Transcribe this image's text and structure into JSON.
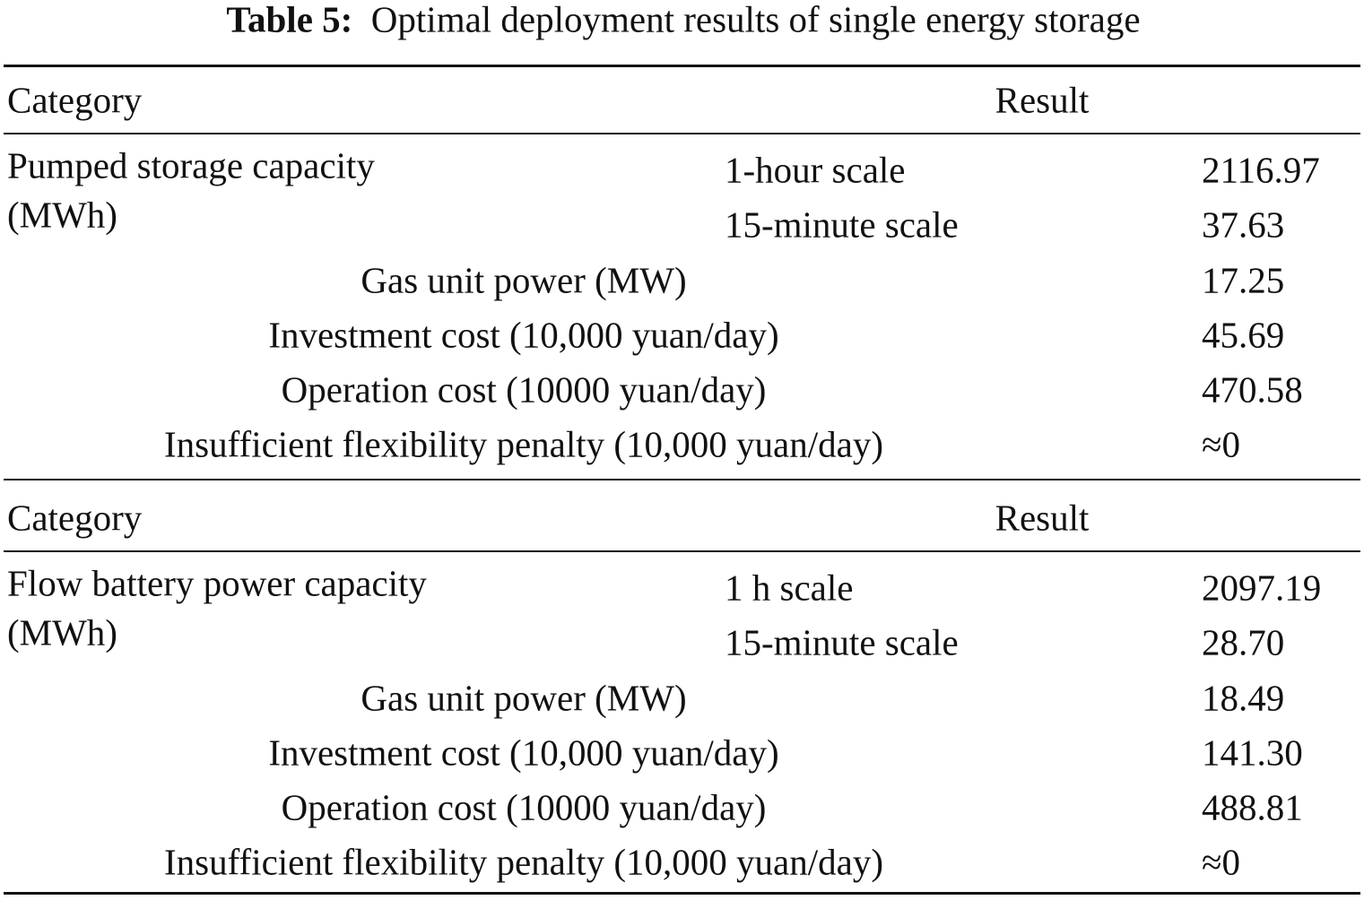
{
  "caption": {
    "label": "Table 5:",
    "title": "Optimal deployment results of single energy storage"
  },
  "sections": [
    {
      "header": [
        "Category",
        "Result"
      ],
      "group": {
        "label": "Pumped storage capacity",
        "unit": "(MWh)",
        "rows": [
          [
            "1-hour scale",
            "2116.97"
          ],
          [
            "15-minute scale",
            "37.63"
          ]
        ]
      },
      "rows": [
        [
          "Gas unit power (MW)",
          "17.25"
        ],
        [
          "Investment cost (10,000 yuan/day)",
          "45.69"
        ],
        [
          "Operation cost (10000 yuan/day)",
          "470.58"
        ],
        [
          "Insufficient flexibility penalty (10,000 yuan/day)",
          "≈0"
        ]
      ]
    },
    {
      "header": [
        "Category",
        "Result"
      ],
      "group": {
        "label": "Flow battery power capacity",
        "unit": "(MWh)",
        "rows": [
          [
            "1 h scale",
            "2097.19"
          ],
          [
            "15-minute scale",
            "28.70"
          ]
        ]
      },
      "rows": [
        [
          "Gas unit power (MW)",
          "18.49"
        ],
        [
          "Investment cost (10,000 yuan/day)",
          "141.30"
        ],
        [
          "Operation cost (10000 yuan/day)",
          "488.81"
        ],
        [
          "Insufficient flexibility penalty (10,000 yuan/day)",
          "≈0"
        ]
      ]
    }
  ]
}
